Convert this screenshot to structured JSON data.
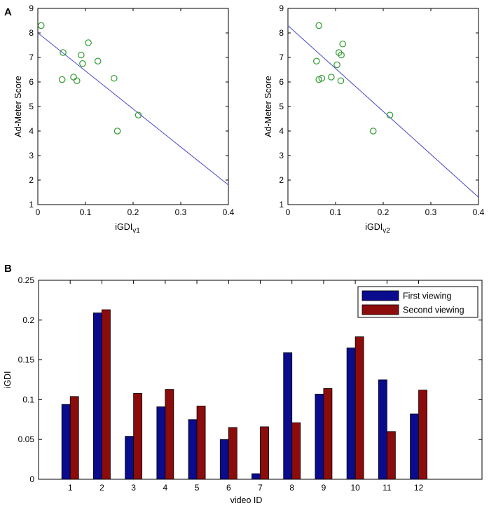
{
  "chart_data": [
    {
      "panel": "A",
      "type": "scatter",
      "title": "",
      "xlabel": "iGDI",
      "xlabel_sub": "v1",
      "ylabel": "Ad-Meter Score",
      "xlim": [
        0,
        0.4
      ],
      "ylim": [
        1,
        9
      ],
      "xticks": [
        "0",
        "0.1",
        "0.2",
        "0.3",
        "0.4"
      ],
      "yticks": [
        "1",
        "2",
        "3",
        "4",
        "5",
        "6",
        "7",
        "8",
        "9"
      ],
      "points": [
        {
          "x": 0.007,
          "y": 8.3
        },
        {
          "x": 0.053,
          "y": 7.2
        },
        {
          "x": 0.051,
          "y": 6.1
        },
        {
          "x": 0.075,
          "y": 6.2
        },
        {
          "x": 0.082,
          "y": 6.05
        },
        {
          "x": 0.091,
          "y": 7.1
        },
        {
          "x": 0.094,
          "y": 6.75
        },
        {
          "x": 0.106,
          "y": 7.6
        },
        {
          "x": 0.126,
          "y": 6.85
        },
        {
          "x": 0.16,
          "y": 6.15
        },
        {
          "x": 0.167,
          "y": 4.0
        },
        {
          "x": 0.211,
          "y": 4.65
        }
      ],
      "fit_line": {
        "x": [
          0,
          0.4
        ],
        "y": [
          8.0,
          1.8
        ]
      },
      "marker_color": "#2e9a2e",
      "line_color": "#4848c8"
    },
    {
      "panel": "A2",
      "type": "scatter",
      "title": "",
      "xlabel": "iGDI",
      "xlabel_sub": "v2",
      "ylabel": "Ad-Meter Score",
      "xlim": [
        0,
        0.4
      ],
      "ylim": [
        1,
        9
      ],
      "xticks": [
        "0",
        "0.1",
        "0.2",
        "0.3",
        "0.4"
      ],
      "yticks": [
        "1",
        "2",
        "3",
        "4",
        "5",
        "6",
        "7",
        "8",
        "9"
      ],
      "points": [
        {
          "x": 0.065,
          "y": 8.3
        },
        {
          "x": 0.06,
          "y": 6.85
        },
        {
          "x": 0.065,
          "y": 6.1
        },
        {
          "x": 0.071,
          "y": 6.15
        },
        {
          "x": 0.091,
          "y": 6.2
        },
        {
          "x": 0.103,
          "y": 6.7
        },
        {
          "x": 0.107,
          "y": 7.2
        },
        {
          "x": 0.112,
          "y": 7.1
        },
        {
          "x": 0.115,
          "y": 7.55
        },
        {
          "x": 0.111,
          "y": 6.05
        },
        {
          "x": 0.179,
          "y": 4.0
        },
        {
          "x": 0.214,
          "y": 4.65
        }
      ],
      "fit_line": {
        "x": [
          0,
          0.4
        ],
        "y": [
          8.3,
          1.3
        ]
      },
      "marker_color": "#2e9a2e",
      "line_color": "#4848c8"
    },
    {
      "panel": "B",
      "type": "bar",
      "title": "",
      "xlabel": "video ID",
      "ylabel": "iGDI",
      "ylim": [
        0,
        0.25
      ],
      "yticks": [
        "0",
        "0.05",
        "0.1",
        "0.15",
        "0.2",
        "0.25"
      ],
      "categories": [
        "1",
        "2",
        "3",
        "4",
        "5",
        "6",
        "7",
        "8",
        "9",
        "10",
        "11",
        "12"
      ],
      "series": [
        {
          "name": "First viewing",
          "color": "#0b0b8e",
          "values": [
            0.094,
            0.209,
            0.054,
            0.091,
            0.075,
            0.05,
            0.007,
            0.159,
            0.107,
            0.165,
            0.125,
            0.082
          ]
        },
        {
          "name": "Second viewing",
          "color": "#8c0b0b",
          "values": [
            0.104,
            0.213,
            0.108,
            0.113,
            0.092,
            0.065,
            0.066,
            0.071,
            0.114,
            0.179,
            0.06,
            0.112
          ]
        }
      ],
      "legend_position": "top-right"
    }
  ],
  "labels": {
    "panel_a": "A",
    "panel_b": "B"
  }
}
